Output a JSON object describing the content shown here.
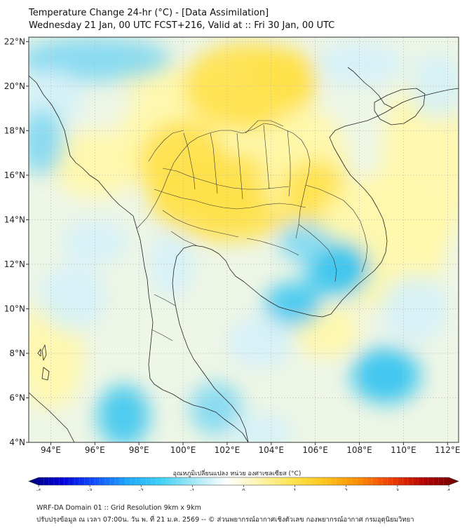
{
  "title": {
    "line1": "Temperature Change 24-hr (°C) - [Data Assimilation]",
    "line2": "Wednesday 21 Jan, 00 UTC FCST+216, Valid at :: Fri 30 Jan, 00 UTC"
  },
  "map": {
    "lon_range": [
      93,
      112.5
    ],
    "lat_range": [
      4,
      22.2
    ],
    "lon_ticks": [
      "94°E",
      "96°E",
      "98°E",
      "100°E",
      "102°E",
      "104°E",
      "106°E",
      "108°E",
      "110°E",
      "112°E"
    ],
    "lat_ticks": [
      "4°N",
      "6°N",
      "8°N",
      "10°N",
      "12°N",
      "14°N",
      "16°N",
      "18°N",
      "20°N",
      "22°N"
    ],
    "grid": true,
    "field_colors": {
      "warm": "#ffe14a",
      "warm_light": "#fff7a8",
      "neutral": "#f4f6dc",
      "cool_light": "#d4f1f8",
      "cool": "#7fd8f2",
      "cool_strong": "#3fc6ef"
    }
  },
  "colorbar": {
    "title": "อุณหภูมิเปลี่ยนแปลง หน่วย องศาเซลเซียส (°C)",
    "ticks": [
      "-4",
      "-3",
      "-2",
      "-1",
      "0",
      "1",
      "2",
      "3",
      "4"
    ],
    "range": [
      -4,
      4
    ],
    "colors": [
      "#00007a",
      "#0000d8",
      "#1050ff",
      "#1ea8ff",
      "#3fd0f4",
      "#a4e8f6",
      "#ffffff",
      "#fff3a8",
      "#ffe34a",
      "#ffc21a",
      "#ff8a00",
      "#ef3a00",
      "#b00000",
      "#6e0000"
    ]
  },
  "footer": {
    "line1": "WRF-DA Domain 01 :: Grid Resolution 9km x 9km",
    "line2": "ปรับปรุงข้อมูล ณ เวลา 07:00น. วัน พ. ที่ 21 ม.ค. 2569 -- © ส่วนพยากรณ์อากาศเชิงตัวเลข กองพยากรณ์อากาศ กรมอุตุนิยมวิทยา"
  }
}
